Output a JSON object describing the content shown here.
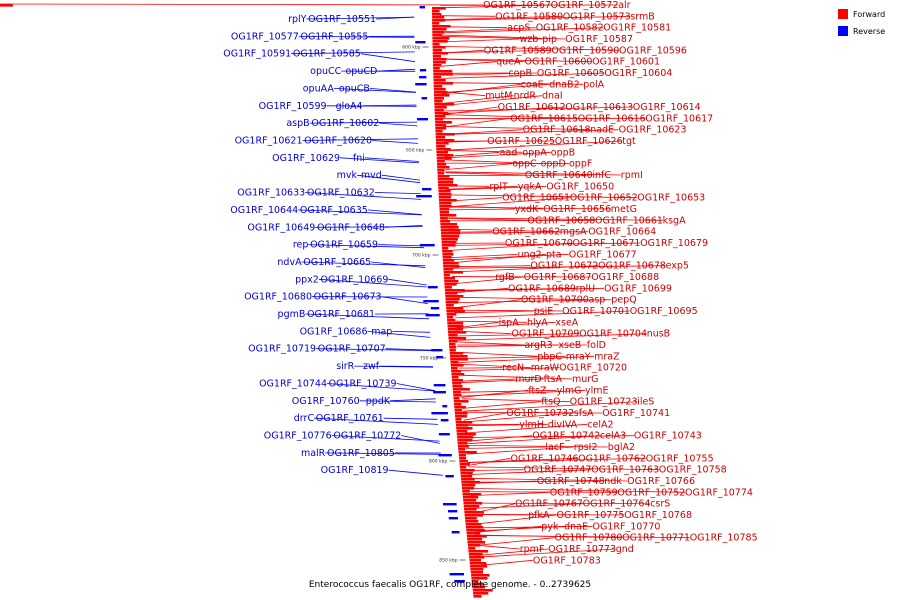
{
  "caption": "Enterococcus faecalis OG1RF, complete genome. - 0..2739625",
  "legend": [
    {
      "label": "Forward",
      "color": "#ff0000"
    },
    {
      "label": "Reverse",
      "color": "#0000ff"
    }
  ],
  "ticks": [
    "600 kbp",
    "650 kbp",
    "700 kbp",
    "750 kbp",
    "800 kbp",
    "850 kbp"
  ],
  "forward_labels": [
    "OG1RF_10567",
    "OG1RF_10572",
    "alr",
    "OG1RF_10580",
    "OG1RF_10573",
    "srmB",
    "acpS",
    "OG1RF_10582",
    "OG1RF_10581",
    "wzb",
    "pip",
    "OG1RF_10587",
    "OG1RF_10589",
    "OG1RF_10590",
    "OG1RF_10596",
    "queA",
    "OG1RF_10600",
    "OG1RF_10601",
    "copB",
    "OG1RF_10605",
    "OG1RF_10604",
    "coaE",
    "dnaB2",
    "polA",
    "mutM",
    "nrdR",
    "dnaI",
    "OG1RF_10612",
    "OG1RF_10613",
    "OG1RF_10614",
    "OG1RF_10615",
    "OG1RF_10616",
    "OG1RF_10617",
    "OG1RF_10618",
    "nadE",
    "OG1RF_10623",
    "OG1RF_10625",
    "OG1RF_10626",
    "tgt",
    "aad",
    "oppA",
    "oppB",
    "oppC",
    "oppD",
    "oppF",
    "OG1RF_10640",
    "infC",
    "rpmI",
    "rplT",
    "yqkA",
    "OG1RF_10650",
    "OG1RF_10651",
    "OG1RF_10652",
    "OG1RF_10653",
    "yxdK",
    "OG1RF_10656",
    "metG",
    "OG1RF_10658",
    "OG1RF_10661",
    "ksgA",
    "OG1RF_10662",
    "mgsA",
    "OG1RF_10664",
    "OG1RF_10670",
    "OG1RF_10671",
    "OG1RF_10679",
    "ung2",
    "pta",
    "OG1RF_10677",
    "OG1RF_10672",
    "OG1RF_10678",
    "exp5",
    "rgfB",
    "OG1RF_10687",
    "OG1RF_10688",
    "OG1RF_10689",
    "rplU",
    "OG1RF_10699",
    "OG1RF_10700",
    "asp",
    "pepQ",
    "psiE",
    "OG1RF_10701",
    "OG1RF_10695",
    "ispA",
    "hlyA",
    "xseA",
    "OG1RF_10709",
    "OG1RF_10704",
    "nusB",
    "argR3",
    "xseB",
    "folD",
    "pbpC",
    "mraY",
    "mraZ",
    "recN",
    "mraW",
    "OG1RF_10720",
    "murD",
    "ftsA",
    "murG",
    "ftsZ",
    "ylmG",
    "ylmE",
    "ftsQ",
    "OG1RF_10723",
    "ileS",
    "OG1RF_10732",
    "sfsA",
    "OG1RF_10741",
    "ylmH",
    "divIVA",
    "celA2",
    "OG1RF_10742",
    "celA3",
    "OG1RF_10743",
    "lacF",
    "rpsI2",
    "bglA2",
    "OG1RF_10746",
    "OG1RF_10762",
    "OG1RF_10755",
    "OG1RF_10747",
    "OG1RF_10763",
    "OG1RF_10758",
    "OG1RF_10748",
    "ndk",
    "OG1RF_10766",
    "OG1RF_10759",
    "OG1RF_10752",
    "OG1RF_10774",
    "OG1RF_10767",
    "OG1RF_10764",
    "csrS",
    "pfkA",
    "OG1RF_10775",
    "OG1RF_10768",
    "pyk",
    "dnaE",
    "OG1RF_10770",
    "OG1RF_10780",
    "OG1RF_10771",
    "OG1RF_10785",
    "rpmF",
    "OG1RF_10773",
    "gnd",
    "OG1RF_10783"
  ],
  "reverse_labels": [
    "OG1RF_10551",
    "rplY",
    "OG1RF_10555",
    "OG1RF_10577",
    "OG1RF_10585",
    "OG1RF_10591",
    "opuCD",
    "opuCC",
    "opuCB",
    "opuAA",
    "gloA4",
    "OG1RF_10599",
    "OG1RF_10602",
    "aspB",
    "OG1RF_10620",
    "OG1RF_10621",
    "fni",
    "OG1RF_10629",
    "mvd",
    "mvk",
    "OG1RF_10632",
    "OG1RF_10633",
    "OG1RF_10635",
    "OG1RF_10644",
    "OG1RF_10648",
    "OG1RF_10649",
    "OG1RF_10659",
    "rep",
    "OG1RF_10665",
    "ndvA",
    "OG1RF_10669",
    "ppx2",
    "OG1RF_10673",
    "OG1RF_10680",
    "OG1RF_10681",
    "pgmB",
    "map",
    "OG1RF_10686",
    "OG1RF_10707",
    "OG1RF_10719",
    "zwf",
    "sirR",
    "OG1RF_10739",
    "OG1RF_10744",
    "ppdK",
    "OG1RF_10760",
    "OG1RF_10761",
    "drrC",
    "OG1RF_10772",
    "OG1RF_10776",
    "OG1RF_10805",
    "malR",
    "OG1RF_10819"
  ]
}
